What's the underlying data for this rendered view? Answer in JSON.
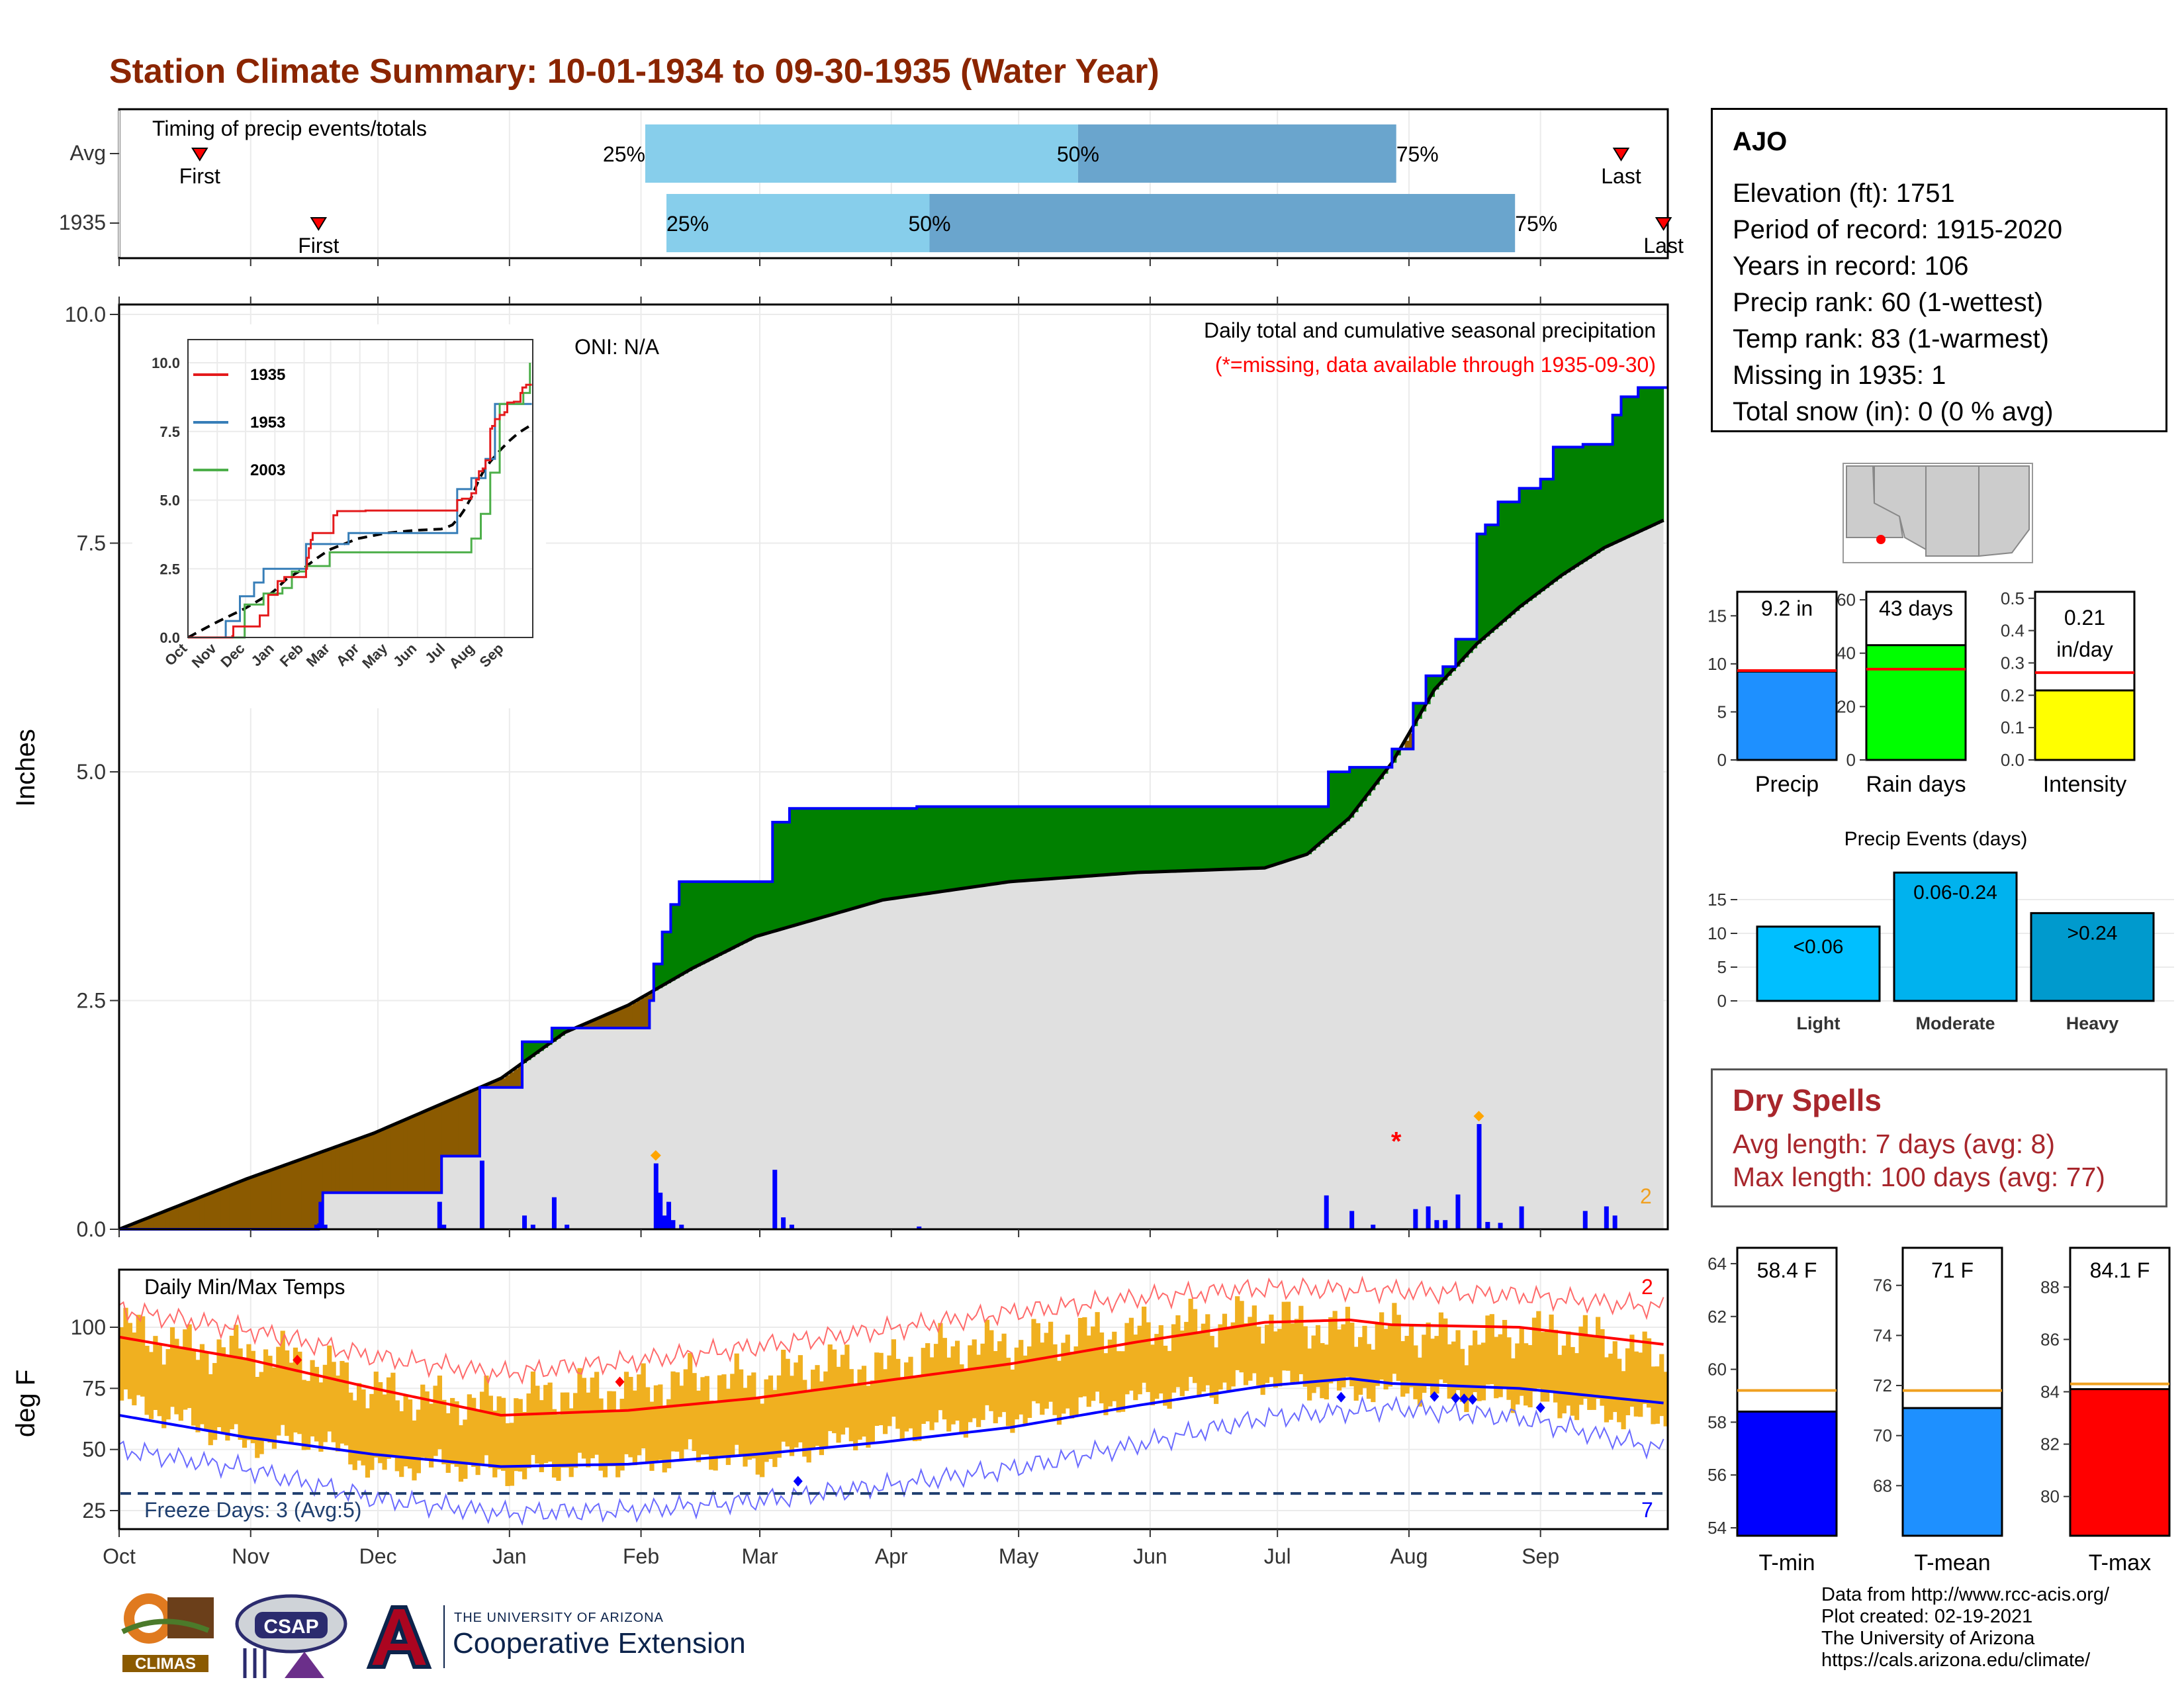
{
  "title": "Station Climate Summary: 10-01-1934 to 09-30-1935 (Water Year)",
  "colors": {
    "title": "#8b2500",
    "light_blue": "#87ceeb",
    "mid_blue": "#6aa5cd",
    "dark_blue": "#0000ff",
    "green": "#008000",
    "brown": "#8b5a00",
    "gray_fill": "#e0e0e0",
    "orange": "#f0b020",
    "red": "#ff0000",
    "freeze_line": "#1f3f6f",
    "dry_red": "#a8262c"
  },
  "timing": {
    "label": "Timing of precip events/totals",
    "rows": [
      {
        "name": "Avg",
        "first_day": 19,
        "q25": 124,
        "q50": 226,
        "q75": 301,
        "last_day": 354,
        "first_label": "First",
        "last_label": "Last",
        "q25_label": "25%",
        "q50_label": "50%",
        "q75_label": "75%"
      },
      {
        "name": "1935",
        "first_day": 47,
        "q25": 129,
        "q50": 191,
        "q75": 329,
        "last_day": 364,
        "first_label": "First",
        "last_label": "Last",
        "q25_label": "25%",
        "q50_label": "50%",
        "q75_label": "75%"
      }
    ]
  },
  "precip_panel": {
    "ylabel": "Inches",
    "yticks": [
      "0.0",
      "2.5",
      "5.0",
      "7.5",
      "10.0"
    ],
    "oni": "ONI: N/A",
    "legend_title": "Daily total and cumulative seasonal precipitation",
    "missing_note": "(*=missing, data available through 1935-09-30)",
    "missing_marker": "*",
    "extreme_count": "2"
  },
  "inset": {
    "yticks": [
      "0.0",
      "2.5",
      "5.0",
      "7.5",
      "10.0"
    ],
    "xticks": [
      "Oct",
      "Nov",
      "Dec",
      "Jan",
      "Feb",
      "Mar",
      "Apr",
      "May",
      "Jun",
      "Jul",
      "Aug",
      "Sep"
    ],
    "legend": [
      {
        "name": "1935",
        "color": "#e41a1c"
      },
      {
        "name": "1953",
        "color": "#377eb8"
      },
      {
        "name": "2003",
        "color": "#4daf4a"
      }
    ]
  },
  "temp_panel": {
    "label": "Daily Min/Max Temps",
    "ylabel": "deg F",
    "yticks": [
      "25",
      "50",
      "75",
      "100"
    ],
    "freeze_label": "Freeze Days: 3 (Avg:5)",
    "freeze_temp": 32,
    "high_record_count": "2",
    "low_record_count": "7"
  },
  "months": [
    "Oct",
    "Nov",
    "Dec",
    "Jan",
    "Feb",
    "Mar",
    "Apr",
    "May",
    "Jun",
    "Jul",
    "Aug",
    "Sep"
  ],
  "station": {
    "name": "AJO",
    "lines": [
      "Elevation (ft): 1751",
      "Period of record: 1915-2020",
      "Years in record: 106",
      "Precip rank: 60 (1-wettest)",
      "Temp rank: 83 (1-warmest)",
      "Missing in 1935: 1",
      "Total snow (in): 0 (0 % avg)"
    ]
  },
  "precip_bars": [
    {
      "label": "Precip",
      "value_label": "9.2 in",
      "value": 9.2,
      "avg": 9.3,
      "max": 17.5,
      "color": "#1e90ff",
      "ticks": [
        "0",
        "5",
        "10",
        "15"
      ]
    },
    {
      "label": "Rain days",
      "value_label": "43 days",
      "value": 43,
      "avg": 34,
      "max": 63,
      "color": "#00ff00",
      "ticks": [
        "0",
        "20",
        "40",
        "60"
      ]
    },
    {
      "label": "Intensity",
      "value_label": "0.21 in/day",
      "value_label_1": "0.21",
      "value_label_2": "in/day",
      "value": 0.215,
      "avg": 0.27,
      "max": 0.52,
      "color": "#ffff00",
      "ticks": [
        "0.0",
        "0.1",
        "0.2",
        "0.3",
        "0.4",
        "0.5"
      ]
    }
  ],
  "events": {
    "title": "Precip Events (days)",
    "ticks": [
      "0",
      "5",
      "10",
      "15"
    ],
    "categories": [
      {
        "name": "Light",
        "value": 11,
        "label": "<0.06",
        "color": "#00bfff"
      },
      {
        "name": "Moderate",
        "value": 19,
        "label": "0.06-0.24",
        "color": "#00b2ee"
      },
      {
        "name": "Heavy",
        "value": 13,
        "label": ">0.24",
        "color": "#009acd"
      }
    ]
  },
  "dry_spells": {
    "title": "Dry Spells",
    "avg_line": "Avg length: 7 days (avg: 8)",
    "max_line": "Max length: 100 days (avg: 77)"
  },
  "temp_bars": [
    {
      "label": "T-min",
      "value_label": "58.4 F",
      "value": 58.4,
      "avg": 59.2,
      "min": 53.7,
      "max": 64.6,
      "color": "#0000ff",
      "ticks": [
        "54",
        "56",
        "58",
        "60",
        "62",
        "64"
      ],
      "tick_values": [
        54,
        56,
        58,
        60,
        62,
        64
      ]
    },
    {
      "label": "T-mean",
      "value_label": "71 F",
      "value": 71.1,
      "avg": 71.8,
      "min": 66.0,
      "max": 77.5,
      "color": "#1e90ff",
      "ticks": [
        "68",
        "70",
        "72",
        "74",
        "76"
      ],
      "tick_values": [
        68,
        70,
        72,
        74,
        76
      ]
    },
    {
      "label": "T-max",
      "value_label": "84.1 F",
      "value": 84.1,
      "avg": 84.3,
      "min": 78.5,
      "max": 89.5,
      "color": "#ff0000",
      "ticks": [
        "80",
        "82",
        "84",
        "86",
        "88"
      ],
      "tick_values": [
        80,
        82,
        84,
        86,
        88
      ]
    }
  ],
  "chart_data": [
    {
      "type": "area",
      "title": "Daily total and cumulative seasonal precipitation",
      "ylabel": "Inches",
      "ylim": [
        0,
        10
      ],
      "x_axis": "days of water year starting Oct 1, 1934",
      "series": [
        {
          "name": "1935",
          "x": [
            0,
            46,
            47,
            48,
            75,
            76,
            85,
            90,
            95,
            102,
            105,
            125,
            126,
            128,
            130,
            132,
            135,
            150,
            154,
            158,
            185,
            188,
            260,
            284,
            285,
            290,
            300,
            305,
            308,
            312,
            315,
            320,
            322,
            325,
            330,
            335,
            338,
            345,
            352,
            354,
            358,
            364
          ],
          "y": [
            0.0,
            0.0,
            0.05,
            0.4,
            0.4,
            0.8,
            1.55,
            1.55,
            2.05,
            2.2,
            2.2,
            2.5,
            2.9,
            3.25,
            3.55,
            3.8,
            3.8,
            3.8,
            4.45,
            4.6,
            4.6,
            4.62,
            4.62,
            4.62,
            5.0,
            5.05,
            5.25,
            5.75,
            6.05,
            6.15,
            6.45,
            7.6,
            7.7,
            7.95,
            8.1,
            8.2,
            8.55,
            8.58,
            8.9,
            9.1,
            9.2,
            9.2
          ]
        },
        {
          "name": "average",
          "x": [
            0,
            30,
            60,
            90,
            105,
            120,
            135,
            150,
            180,
            210,
            240,
            270,
            280,
            290,
            300,
            310,
            320,
            330,
            340,
            350,
            364
          ],
          "y": [
            0.0,
            0.55,
            1.05,
            1.65,
            2.15,
            2.45,
            2.85,
            3.2,
            3.6,
            3.8,
            3.9,
            3.95,
            4.1,
            4.5,
            5.1,
            5.9,
            6.4,
            6.8,
            7.15,
            7.45,
            7.75
          ]
        }
      ],
      "daily_precip": {
        "days": [
          46,
          47,
          48,
          75,
          76,
          85,
          95,
          97,
          102,
          105,
          126,
          127,
          128,
          129,
          130,
          132,
          154,
          156,
          158,
          188,
          284,
          290,
          295,
          305,
          308,
          310,
          312,
          315,
          320,
          322,
          325,
          330,
          345,
          350,
          352
        ],
        "values": [
          0.05,
          0.3,
          0.05,
          0.3,
          0.05,
          0.75,
          0.15,
          0.05,
          0.35,
          0.05,
          0.72,
          0.4,
          0.15,
          0.3,
          0.1,
          0.05,
          0.65,
          0.13,
          0.05,
          0.03,
          0.37,
          0.2,
          0.05,
          0.22,
          0.25,
          0.1,
          0.1,
          0.38,
          1.15,
          0.08,
          0.07,
          0.25,
          0.2,
          0.25,
          0.15
        ]
      },
      "extreme_days": [
        {
          "day": 126,
          "value": 0.72
        },
        {
          "day": 320,
          "value": 1.15
        }
      ],
      "missing_days": [
        301
      ]
    },
    {
      "type": "line",
      "title": "Daily Min/Max Temps",
      "ylabel": "deg F",
      "ylim": [
        15,
        120
      ],
      "series": [
        {
          "name": "avg max",
          "x": [
            0,
            30,
            60,
            90,
            120,
            150,
            180,
            210,
            240,
            270,
            290,
            300,
            330,
            364
          ],
          "y": [
            96,
            87,
            75,
            64,
            66,
            71,
            78,
            85,
            94,
            102,
            103,
            101,
            100,
            93
          ]
        },
        {
          "name": "avg min",
          "x": [
            0,
            30,
            60,
            90,
            120,
            150,
            180,
            210,
            240,
            270,
            290,
            300,
            330,
            364
          ],
          "y": [
            64,
            55,
            48,
            43,
            44,
            48,
            53,
            59,
            68,
            76,
            79,
            77,
            75,
            69
          ]
        },
        {
          "name": "record high",
          "x": [
            0,
            30,
            60,
            90,
            120,
            150,
            180,
            210,
            240,
            270,
            300,
            330,
            364
          ],
          "y": [
            107,
            99,
            88,
            81,
            86,
            92,
            99,
            106,
            112,
            116,
            115,
            113,
            108
          ]
        },
        {
          "name": "record low",
          "x": [
            0,
            30,
            60,
            90,
            120,
            150,
            180,
            210,
            240,
            270,
            300,
            330,
            364
          ],
          "y": [
            50,
            42,
            30,
            24,
            25,
            29,
            35,
            42,
            52,
            63,
            67,
            63,
            50
          ]
        }
      ],
      "daily_range": {
        "x": [
          0,
          15,
          30,
          45,
          60,
          75,
          90,
          105,
          120,
          135,
          150,
          165,
          180,
          195,
          210,
          225,
          240,
          255,
          270,
          285,
          300,
          315,
          330,
          345,
          364
        ],
        "max": [
          100,
          92,
          90,
          86,
          74,
          70,
          69,
          74,
          75,
          79,
          78,
          85,
          84,
          92,
          93,
          97,
          98,
          102,
          104,
          99,
          100,
          95,
          98,
          97,
          86
        ],
        "min": [
          70,
          62,
          52,
          55,
          42,
          44,
          40,
          43,
          44,
          48,
          44,
          52,
          57,
          60,
          63,
          67,
          71,
          74,
          79,
          74,
          75,
          72,
          71,
          66,
          62
        ]
      },
      "record_high_days": [
        42,
        118
      ],
      "record_low_days": [
        160,
        288,
        310,
        315,
        317,
        319,
        335
      ],
      "freeze_threshold": 32
    }
  ]
}
